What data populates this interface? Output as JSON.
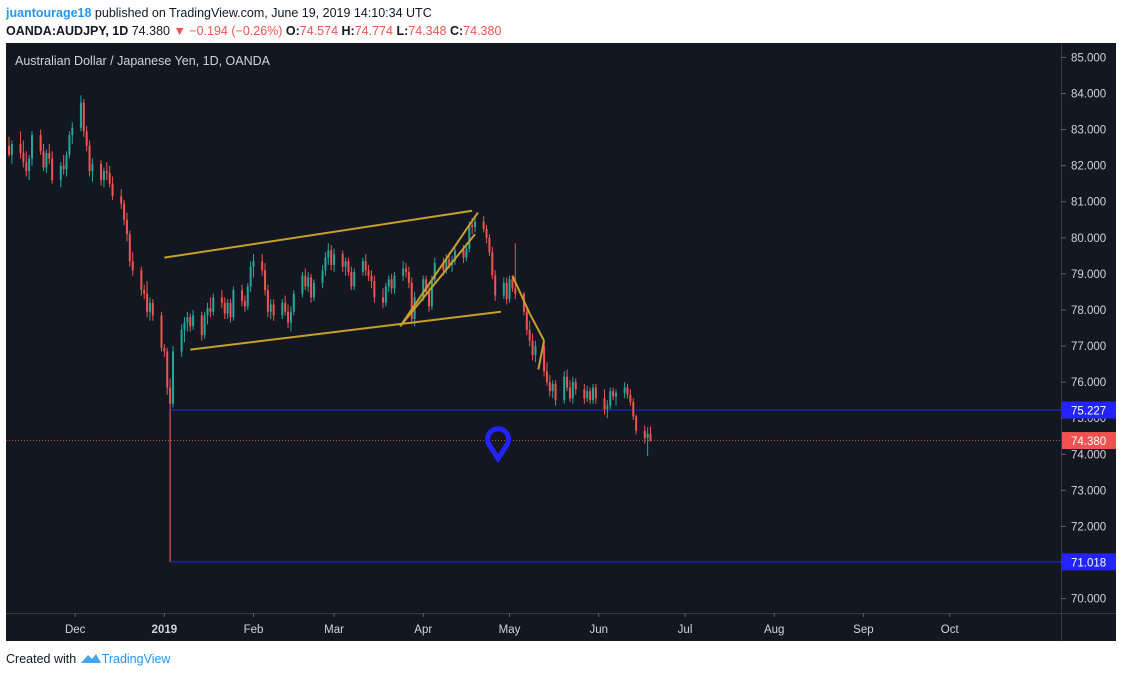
{
  "header": {
    "author": "juantourage18",
    "published_text": "published on TradingView.com, June 19, 2019 14:10:34 UTC",
    "symbol": "OANDA:AUDJPY, 1D",
    "last": "74.380",
    "change": "▼ −0.194 (−0.26%)",
    "o_label": "O:",
    "o_value": "74.574",
    "h_label": "H:",
    "h_value": "74.774",
    "l_label": "L:",
    "l_value": "74.348",
    "c_label": "C:",
    "c_value": "74.380"
  },
  "footer": {
    "created_with": "Created with",
    "brand": "TradingView"
  },
  "chart_data": {
    "type": "candlestick",
    "title": "Australian Dollar / Japanese Yen, 1D, OANDA",
    "x_ticks": [
      {
        "label": "Dec",
        "date": "2018-12-01"
      },
      {
        "label": "2019",
        "date": "2019-01-01"
      },
      {
        "label": "Feb",
        "date": "2019-02-01"
      },
      {
        "label": "Mar",
        "date": "2019-03-01"
      },
      {
        "label": "Apr",
        "date": "2019-04-01"
      },
      {
        "label": "May",
        "date": "2019-05-01"
      },
      {
        "label": "Jun",
        "date": "2019-06-01"
      },
      {
        "label": "Jul",
        "date": "2019-07-01"
      },
      {
        "label": "Aug",
        "date": "2019-08-01"
      },
      {
        "label": "Sep",
        "date": "2019-09-01"
      },
      {
        "label": "Oct",
        "date": "2019-10-01"
      }
    ],
    "x_range": [
      "2018-11-08",
      "2019-10-31"
    ],
    "y_ticks": [
      "70.000",
      "71.000",
      "72.000",
      "73.000",
      "74.000",
      "75.000",
      "76.000",
      "77.000",
      "78.000",
      "79.000",
      "80.000",
      "81.000",
      "82.000",
      "83.000",
      "84.000",
      "85.000"
    ],
    "ylim": [
      69.6,
      85.4
    ],
    "colors": {
      "up": "#26a69a",
      "down": "#ef5350",
      "level": "#2323ff",
      "pattern": "#c8a029",
      "background": "#131722",
      "last_price": "#ef5350"
    },
    "horizontal_levels": [
      {
        "value": 75.227,
        "label": "75.227",
        "from": "2019-01-03"
      },
      {
        "value": 71.018,
        "label": "71.018",
        "from": "2019-01-03"
      }
    ],
    "last_price": {
      "value": 74.38,
      "label": "74.380"
    },
    "flash_crash": {
      "date": "2019-01-03",
      "high": 75.25,
      "low": 71.02
    },
    "channel_lines": [
      {
        "from": [
          "2019-01-01",
          79.45
        ],
        "to": [
          "2019-04-18",
          80.75
        ]
      },
      {
        "from": [
          "2019-01-10",
          76.9
        ],
        "to": [
          "2019-04-28",
          77.95
        ]
      },
      {
        "from": [
          "2019-03-24",
          77.55
        ],
        "to": [
          "2019-04-20",
          80.7
        ]
      },
      {
        "from": [
          "2019-03-24",
          77.55
        ],
        "to": [
          "2019-04-19",
          80.1
        ]
      },
      {
        "from": [
          "2019-05-02",
          78.95
        ],
        "to": [
          "2019-05-08",
          77.9
        ]
      },
      {
        "from": [
          "2019-05-08",
          77.9
        ],
        "to": [
          "2019-05-13",
          77.15
        ]
      },
      {
        "from": [
          "2019-05-13",
          77.15
        ],
        "to": [
          "2019-05-11",
          76.35
        ]
      }
    ],
    "marker": {
      "type": "pin",
      "date": "2019-04-27",
      "value": 74.1
    },
    "candles": [
      [
        "2018-11-08",
        82.55,
        82.8,
        82.25,
        82.3
      ],
      [
        "2018-11-09",
        82.3,
        82.7,
        82.05,
        82.6
      ],
      [
        "2018-11-12",
        82.6,
        82.95,
        82.2,
        82.35
      ],
      [
        "2018-11-13",
        82.35,
        82.7,
        81.95,
        82.1
      ],
      [
        "2018-11-14",
        82.1,
        82.4,
        81.7,
        81.85
      ],
      [
        "2018-11-15",
        81.85,
        82.3,
        81.6,
        82.2
      ],
      [
        "2018-11-16",
        82.2,
        82.95,
        82.0,
        82.85
      ],
      [
        "2018-11-19",
        82.85,
        83.0,
        82.3,
        82.4
      ],
      [
        "2018-11-20",
        82.4,
        82.6,
        81.85,
        81.95
      ],
      [
        "2018-11-21",
        81.95,
        82.45,
        81.8,
        82.35
      ],
      [
        "2018-11-22",
        82.35,
        82.6,
        82.05,
        82.2
      ],
      [
        "2018-11-23",
        82.2,
        82.4,
        81.5,
        81.6
      ],
      [
        "2018-11-26",
        81.6,
        82.1,
        81.4,
        82.0
      ],
      [
        "2018-11-27",
        82.0,
        82.3,
        81.75,
        81.9
      ],
      [
        "2018-11-28",
        81.9,
        82.4,
        81.7,
        82.3
      ],
      [
        "2018-11-29",
        82.3,
        82.95,
        82.2,
        82.85
      ],
      [
        "2018-11-30",
        82.85,
        83.2,
        82.6,
        83.05
      ],
      [
        "2018-12-03",
        83.05,
        83.95,
        82.95,
        83.75
      ],
      [
        "2018-12-04",
        83.75,
        83.85,
        82.8,
        82.95
      ],
      [
        "2018-12-05",
        82.95,
        83.1,
        82.4,
        82.55
      ],
      [
        "2018-12-06",
        82.55,
        82.7,
        81.7,
        81.85
      ],
      [
        "2018-12-07",
        81.85,
        82.2,
        81.55,
        82.05
      ],
      [
        "2018-12-10",
        82.05,
        82.15,
        81.45,
        81.6
      ],
      [
        "2018-12-11",
        81.6,
        81.95,
        81.4,
        81.85
      ],
      [
        "2018-12-12",
        81.85,
        82.1,
        81.6,
        81.8
      ],
      [
        "2018-12-13",
        81.8,
        82.0,
        81.4,
        81.5
      ],
      [
        "2018-12-14",
        81.5,
        81.7,
        81.05,
        81.15
      ],
      [
        "2018-12-17",
        81.15,
        81.35,
        80.8,
        80.95
      ],
      [
        "2018-12-18",
        80.95,
        81.05,
        80.35,
        80.5
      ],
      [
        "2018-12-19",
        80.5,
        80.7,
        79.9,
        80.1
      ],
      [
        "2018-12-20",
        80.1,
        80.2,
        79.2,
        79.35
      ],
      [
        "2018-12-21",
        79.35,
        79.6,
        78.95,
        79.1
      ],
      [
        "2018-12-24",
        79.1,
        79.2,
        78.4,
        78.55
      ],
      [
        "2018-12-25",
        78.55,
        78.7,
        78.3,
        78.45
      ],
      [
        "2018-12-26",
        78.45,
        78.8,
        77.8,
        77.95
      ],
      [
        "2018-12-27",
        77.95,
        78.35,
        77.7,
        78.2
      ],
      [
        "2018-12-28",
        78.2,
        78.3,
        77.7,
        77.85
      ],
      [
        "2018-12-31",
        77.85,
        77.95,
        76.85,
        76.95
      ],
      [
        "2019-01-01",
        76.95,
        77.05,
        76.7,
        76.85
      ],
      [
        "2019-01-02",
        76.85,
        76.95,
        75.65,
        75.85
      ],
      [
        "2019-01-03",
        75.85,
        76.1,
        71.02,
        75.4
      ],
      [
        "2019-01-04",
        75.4,
        77.0,
        75.3,
        76.85
      ],
      [
        "2019-01-07",
        76.85,
        77.6,
        76.7,
        77.45
      ],
      [
        "2019-01-08",
        77.45,
        77.8,
        77.1,
        77.65
      ],
      [
        "2019-01-09",
        77.65,
        77.95,
        77.4,
        77.8
      ],
      [
        "2019-01-10",
        77.8,
        77.9,
        77.4,
        77.55
      ],
      [
        "2019-01-11",
        77.55,
        78.0,
        77.45,
        77.85
      ],
      [
        "2019-01-14",
        77.85,
        77.95,
        77.15,
        77.3
      ],
      [
        "2019-01-15",
        77.3,
        77.95,
        77.2,
        77.85
      ],
      [
        "2019-01-16",
        77.85,
        78.2,
        77.6,
        78.05
      ],
      [
        "2019-01-17",
        78.05,
        78.35,
        77.8,
        77.95
      ],
      [
        "2019-01-18",
        77.95,
        78.45,
        77.85,
        78.35
      ],
      [
        "2019-01-21",
        78.35,
        78.55,
        78.05,
        78.2
      ],
      [
        "2019-01-22",
        78.2,
        78.35,
        77.75,
        77.9
      ],
      [
        "2019-01-23",
        77.9,
        78.3,
        77.75,
        78.2
      ],
      [
        "2019-01-24",
        78.2,
        78.3,
        77.65,
        77.8
      ],
      [
        "2019-01-25",
        77.8,
        78.65,
        77.7,
        78.55
      ],
      [
        "2019-01-28",
        78.55,
        78.7,
        78.1,
        78.25
      ],
      [
        "2019-01-29",
        78.25,
        78.4,
        77.95,
        78.1
      ],
      [
        "2019-01-30",
        78.1,
        78.75,
        78.0,
        78.65
      ],
      [
        "2019-01-31",
        78.65,
        79.35,
        78.5,
        79.2
      ],
      [
        "2019-02-01",
        79.2,
        79.55,
        78.9,
        79.35
      ],
      [
        "2019-02-04",
        79.35,
        79.55,
        78.95,
        79.1
      ],
      [
        "2019-02-05",
        79.1,
        79.3,
        78.4,
        78.55
      ],
      [
        "2019-02-06",
        78.55,
        78.7,
        77.8,
        77.95
      ],
      [
        "2019-02-07",
        77.95,
        78.3,
        77.75,
        78.15
      ],
      [
        "2019-02-08",
        78.15,
        78.3,
        77.7,
        77.85
      ],
      [
        "2019-02-11",
        77.85,
        78.3,
        77.75,
        78.2
      ],
      [
        "2019-02-12",
        78.2,
        78.4,
        77.85,
        77.95
      ],
      [
        "2019-02-13",
        77.95,
        78.15,
        77.5,
        77.65
      ],
      [
        "2019-02-14",
        77.65,
        78.1,
        77.4,
        77.95
      ],
      [
        "2019-02-15",
        77.95,
        78.55,
        77.85,
        78.45
      ],
      [
        "2019-02-18",
        78.45,
        79.05,
        78.35,
        78.95
      ],
      [
        "2019-02-19",
        78.95,
        79.15,
        78.55,
        78.65
      ],
      [
        "2019-02-20",
        78.65,
        79.05,
        78.5,
        78.9
      ],
      [
        "2019-02-21",
        78.9,
        79.0,
        78.2,
        78.35
      ],
      [
        "2019-02-22",
        78.35,
        78.85,
        78.25,
        78.75
      ],
      [
        "2019-02-25",
        78.75,
        79.25,
        78.6,
        79.1
      ],
      [
        "2019-02-26",
        79.1,
        79.6,
        78.95,
        79.45
      ],
      [
        "2019-02-27",
        79.45,
        79.85,
        79.25,
        79.65
      ],
      [
        "2019-02-28",
        79.65,
        79.8,
        79.1,
        79.25
      ],
      [
        "2019-03-01",
        79.25,
        79.7,
        79.05,
        79.55
      ],
      [
        "2019-03-04",
        79.55,
        79.65,
        79.05,
        79.2
      ],
      [
        "2019-03-05",
        79.2,
        79.45,
        78.95,
        79.35
      ],
      [
        "2019-03-06",
        79.35,
        79.45,
        78.95,
        79.05
      ],
      [
        "2019-03-07",
        79.05,
        79.2,
        78.55,
        78.65
      ],
      [
        "2019-03-08",
        78.65,
        79.15,
        78.55,
        79.05
      ],
      [
        "2019-03-11",
        79.05,
        79.45,
        78.95,
        79.35
      ],
      [
        "2019-03-12",
        79.35,
        79.55,
        78.95,
        79.1
      ],
      [
        "2019-03-13",
        79.1,
        79.25,
        78.8,
        78.95
      ],
      [
        "2019-03-14",
        78.95,
        79.1,
        78.6,
        78.8
      ],
      [
        "2019-03-15",
        78.8,
        78.95,
        78.2,
        78.35
      ],
      [
        "2019-03-18",
        78.35,
        78.6,
        78.05,
        78.2
      ],
      [
        "2019-03-19",
        78.2,
        78.75,
        78.1,
        78.65
      ],
      [
        "2019-03-20",
        78.65,
        78.95,
        78.5,
        78.85
      ],
      [
        "2019-03-21",
        78.85,
        79.0,
        78.45,
        78.6
      ],
      [
        "2019-03-22",
        78.6,
        79.05,
        78.45,
        78.95
      ],
      [
        "2019-03-25",
        78.95,
        79.35,
        78.8,
        79.15
      ],
      [
        "2019-03-26",
        79.15,
        79.3,
        78.9,
        79.05
      ],
      [
        "2019-03-27",
        79.05,
        79.2,
        78.6,
        78.75
      ],
      [
        "2019-03-28",
        78.75,
        78.9,
        77.6,
        77.75
      ],
      [
        "2019-03-29",
        77.75,
        78.5,
        77.55,
        78.35
      ],
      [
        "2019-04-01",
        78.35,
        78.95,
        78.25,
        78.85
      ],
      [
        "2019-04-02",
        78.85,
        78.95,
        78.4,
        78.5
      ],
      [
        "2019-04-03",
        78.5,
        78.65,
        77.95,
        78.1
      ],
      [
        "2019-04-04",
        78.1,
        78.95,
        78.0,
        78.85
      ],
      [
        "2019-04-05",
        78.85,
        79.45,
        78.75,
        79.3
      ],
      [
        "2019-04-08",
        79.3,
        79.45,
        78.95,
        79.1
      ],
      [
        "2019-04-09",
        79.1,
        79.55,
        79.0,
        79.4
      ],
      [
        "2019-04-10",
        79.4,
        79.6,
        79.15,
        79.25
      ],
      [
        "2019-04-11",
        79.25,
        79.5,
        79.05,
        79.35
      ],
      [
        "2019-04-12",
        79.35,
        79.75,
        79.25,
        79.65
      ],
      [
        "2019-04-15",
        79.65,
        79.8,
        79.3,
        79.45
      ],
      [
        "2019-04-16",
        79.45,
        79.85,
        79.35,
        79.7
      ],
      [
        "2019-04-17",
        79.7,
        80.45,
        79.6,
        80.35
      ],
      [
        "2019-04-18",
        80.35,
        80.55,
        80.1,
        80.3
      ],
      [
        "2019-04-19",
        80.3,
        80.55,
        80.15,
        80.45
      ],
      [
        "2019-04-22",
        80.45,
        80.6,
        80.15,
        80.25
      ],
      [
        "2019-04-23",
        80.25,
        80.35,
        79.85,
        80.0
      ],
      [
        "2019-04-24",
        80.0,
        80.1,
        79.5,
        79.6
      ],
      [
        "2019-04-25",
        79.6,
        79.75,
        78.85,
        78.95
      ],
      [
        "2019-04-26",
        78.95,
        79.1,
        78.25,
        78.4
      ],
      [
        "2019-04-29",
        78.4,
        78.9,
        78.3,
        78.75
      ],
      [
        "2019-04-30",
        78.75,
        78.9,
        78.15,
        78.3
      ],
      [
        "2019-05-01",
        78.3,
        78.95,
        78.2,
        78.85
      ],
      [
        "2019-05-02",
        78.85,
        78.95,
        78.5,
        78.6
      ],
      [
        "2019-05-03",
        78.6,
        79.85,
        78.3,
        78.45
      ],
      [
        "2019-05-06",
        78.45,
        78.5,
        77.85,
        77.95
      ],
      [
        "2019-05-07",
        77.95,
        78.05,
        77.3,
        77.45
      ],
      [
        "2019-05-08",
        77.45,
        77.7,
        77.0,
        77.15
      ],
      [
        "2019-05-09",
        77.15,
        77.35,
        76.6,
        76.75
      ],
      [
        "2019-05-10",
        76.75,
        77.15,
        76.55,
        77.0
      ],
      [
        "2019-05-13",
        77.0,
        77.1,
        76.15,
        76.3
      ],
      [
        "2019-05-14",
        76.3,
        76.55,
        75.9,
        76.0
      ],
      [
        "2019-05-15",
        76.0,
        76.2,
        75.6,
        75.75
      ],
      [
        "2019-05-16",
        75.75,
        76.05,
        75.55,
        75.95
      ],
      [
        "2019-05-17",
        75.95,
        76.05,
        75.35,
        75.5
      ],
      [
        "2019-05-20",
        75.5,
        76.3,
        75.4,
        76.15
      ],
      [
        "2019-05-21",
        76.15,
        76.35,
        75.75,
        75.85
      ],
      [
        "2019-05-22",
        75.85,
        76.05,
        75.45,
        75.55
      ],
      [
        "2019-05-23",
        75.55,
        76.15,
        75.4,
        76.0
      ],
      [
        "2019-05-24",
        76.0,
        76.1,
        75.65,
        75.8
      ],
      [
        "2019-05-27",
        75.8,
        75.95,
        75.4,
        75.55
      ],
      [
        "2019-05-28",
        75.55,
        75.9,
        75.45,
        75.75
      ],
      [
        "2019-05-29",
        75.75,
        75.85,
        75.4,
        75.5
      ],
      [
        "2019-05-30",
        75.5,
        75.95,
        75.4,
        75.85
      ],
      [
        "2019-05-31",
        75.85,
        75.95,
        75.4,
        75.55
      ],
      [
        "2019-06-03",
        75.55,
        75.8,
        75.1,
        75.25
      ],
      [
        "2019-06-04",
        75.25,
        75.5,
        75.0,
        75.35
      ],
      [
        "2019-06-05",
        75.35,
        75.85,
        75.25,
        75.75
      ],
      [
        "2019-06-06",
        75.75,
        75.85,
        75.5,
        75.6
      ],
      [
        "2019-06-07",
        75.6,
        75.8,
        75.35,
        75.7
      ],
      [
        "2019-06-10",
        75.7,
        76.0,
        75.55,
        75.85
      ],
      [
        "2019-06-11",
        75.85,
        75.95,
        75.55,
        75.65
      ],
      [
        "2019-06-12",
        75.65,
        75.8,
        75.35,
        75.45
      ],
      [
        "2019-06-13",
        75.45,
        75.55,
        74.95,
        75.05
      ],
      [
        "2019-06-14",
        75.05,
        75.1,
        74.55,
        74.65
      ],
      [
        "2019-06-17",
        74.65,
        74.8,
        74.3,
        74.45
      ],
      [
        "2019-06-18",
        74.45,
        74.75,
        73.95,
        74.57
      ],
      [
        "2019-06-19",
        74.57,
        74.77,
        74.35,
        74.38
      ]
    ]
  }
}
